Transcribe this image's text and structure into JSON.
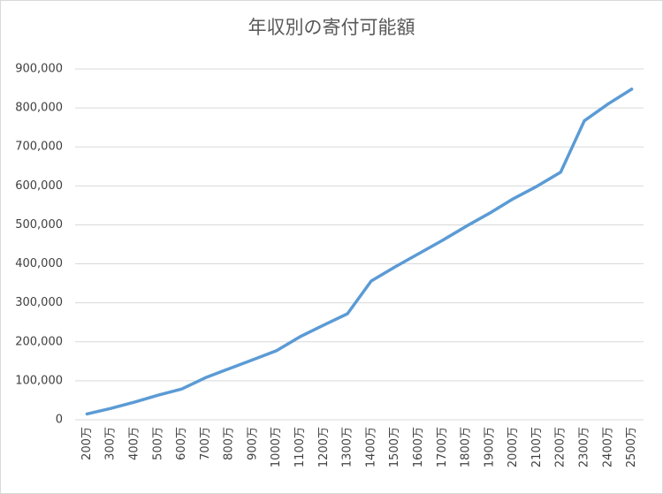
{
  "chart_data": {
    "type": "line",
    "title": "年収別の寄付可能額",
    "categories": [
      "200万",
      "300万",
      "400万",
      "500万",
      "600万",
      "700万",
      "800万",
      "900万",
      "1000万",
      "1100万",
      "1200万",
      "1300万",
      "1400万",
      "1500万",
      "1600万",
      "1700万",
      "1800万",
      "1900万",
      "2000万",
      "2100万",
      "2200万",
      "2300万",
      "2400万",
      "2500万"
    ],
    "values": [
      15000,
      29000,
      45000,
      63000,
      79000,
      108000,
      131000,
      154000,
      177000,
      213000,
      243000,
      272000,
      356000,
      392000,
      426000,
      460000,
      496000,
      530000,
      567000,
      599000,
      635000,
      767000,
      810000,
      848000
    ],
    "color": "#5b9bd5",
    "ylim": [
      0,
      900000
    ],
    "yticks": [
      0,
      {
        "value": 100000,
        "label": "100,000"
      },
      {
        "value": 200000,
        "label": "200,000"
      },
      {
        "value": 300000,
        "label": "300,000"
      },
      {
        "value": 400000,
        "label": "400,000"
      },
      {
        "value": 500000,
        "label": "500,000"
      },
      {
        "value": 600000,
        "label": "600,000"
      },
      {
        "value": 700000,
        "label": "700,000"
      },
      {
        "value": 800000,
        "label": "800,000"
      },
      {
        "value": 900000,
        "label": "900,000"
      }
    ],
    "grid": true
  }
}
